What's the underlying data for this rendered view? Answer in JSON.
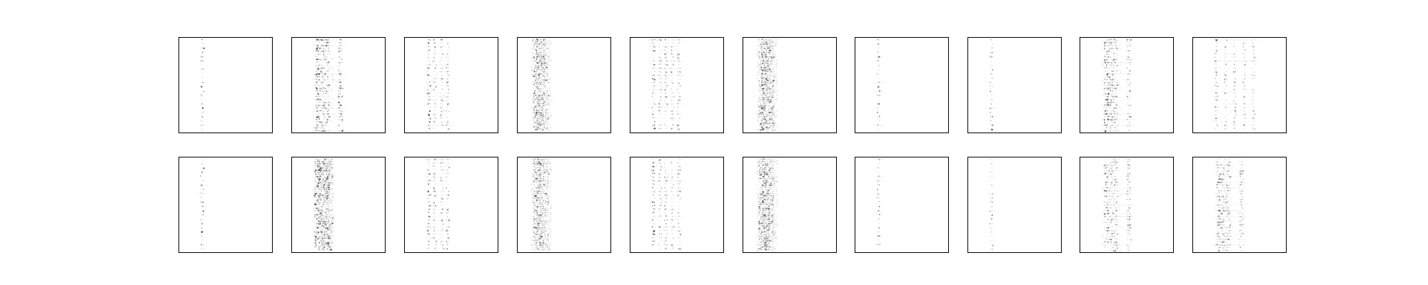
{
  "figure": {
    "rows": 2,
    "cols": 10,
    "background": "#ffffff",
    "frame_color": "#000000",
    "ink_color": "#000000"
  },
  "panels": [
    {
      "id": "r1c1",
      "row": 1,
      "col": 1,
      "pattern": "sparse-single-column",
      "intensity": 0.9
    },
    {
      "id": "r1c2",
      "row": 1,
      "col": 2,
      "pattern": "dense-multi-column",
      "intensity": 1.0
    },
    {
      "id": "r1c3",
      "row": 1,
      "col": 3,
      "pattern": "striped-band",
      "intensity": 0.8
    },
    {
      "id": "r1c4",
      "row": 1,
      "col": 4,
      "pattern": "diffuse-vertical-band",
      "intensity": 0.9
    },
    {
      "id": "r1c5",
      "row": 1,
      "col": 5,
      "pattern": "striped-multi-column",
      "intensity": 0.85
    },
    {
      "id": "r1c6",
      "row": 1,
      "col": 6,
      "pattern": "diffuse-vertical-band",
      "intensity": 1.0
    },
    {
      "id": "r1c7",
      "row": 1,
      "col": 7,
      "pattern": "sparse-single-column",
      "intensity": 0.75
    },
    {
      "id": "r1c8",
      "row": 1,
      "col": 8,
      "pattern": "sparse-single-column",
      "intensity": 0.7
    },
    {
      "id": "r1c9",
      "row": 1,
      "col": 9,
      "pattern": "dense-multi-column",
      "intensity": 0.9
    },
    {
      "id": "r1c10",
      "row": 1,
      "col": 10,
      "pattern": "striped-wide-grid",
      "intensity": 0.85
    },
    {
      "id": "r2c1",
      "row": 2,
      "col": 1,
      "pattern": "sparse-single-column",
      "intensity": 0.85
    },
    {
      "id": "r2c2",
      "row": 2,
      "col": 2,
      "pattern": "diffuse-dense",
      "intensity": 1.0
    },
    {
      "id": "r2c3",
      "row": 2,
      "col": 3,
      "pattern": "striped-band",
      "intensity": 0.8
    },
    {
      "id": "r2c4",
      "row": 2,
      "col": 4,
      "pattern": "diffuse-vertical-band",
      "intensity": 0.8
    },
    {
      "id": "r2c5",
      "row": 2,
      "col": 5,
      "pattern": "striped-multi-column",
      "intensity": 0.85
    },
    {
      "id": "r2c6",
      "row": 2,
      "col": 6,
      "pattern": "diffuse-vertical-band",
      "intensity": 0.9
    },
    {
      "id": "r2c7",
      "row": 2,
      "col": 7,
      "pattern": "sparse-single-column",
      "intensity": 0.8
    },
    {
      "id": "r2c8",
      "row": 2,
      "col": 8,
      "pattern": "sparse-single-column",
      "intensity": 0.7
    },
    {
      "id": "r2c9",
      "row": 2,
      "col": 9,
      "pattern": "dense-multi-column",
      "intensity": 0.75
    },
    {
      "id": "r2c10",
      "row": 2,
      "col": 10,
      "pattern": "dense-multi-column",
      "intensity": 0.75
    }
  ]
}
